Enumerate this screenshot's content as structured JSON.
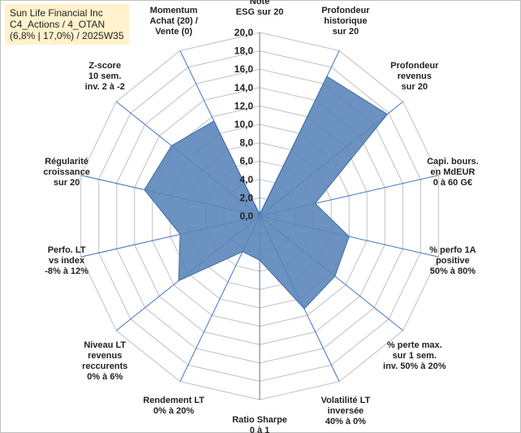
{
  "title": {
    "line1": "Sun Life Financial Inc",
    "line2": "C4_Actions / 4_OTAN",
    "line3": "(6,8% | 17,0%) / 2025W35"
  },
  "colors": {
    "fill": "#5b86b9",
    "stroke": "#3f6ea5",
    "grid": "#c0c0c0",
    "spoke": "#4472c4"
  },
  "chart_data": {
    "type": "radar",
    "range": [
      0,
      20
    ],
    "step": 2,
    "ticks": [
      "0,0",
      "2,0",
      "4,0",
      "6,0",
      "8,0",
      "10,0",
      "12,0",
      "14,0",
      "16,0",
      "18,0",
      "20,0"
    ],
    "grid": true,
    "categories": [
      [
        "Note",
        "ESG sur 20"
      ],
      [
        "Profondeur",
        "historique",
        "sur 20"
      ],
      [
        "Profondeur",
        "revenus",
        "sur 20"
      ],
      [
        "Capi. bours.",
        "en MdEUR",
        "0 à 60 G€"
      ],
      [
        "% perfo 1A",
        "positive",
        "50% à 80%"
      ],
      [
        "% perte max.",
        "sur 1 sem.",
        "inv. 50% à 20%"
      ],
      [
        "Volatilité LT",
        "inversée",
        "40% à 0%"
      ],
      [
        "Ratio Sharpe",
        "0 à 1"
      ],
      [
        "Rendement LT",
        "0% à 20%"
      ],
      [
        "Niveau LT",
        "revenus",
        "reccurents",
        "0% à 6%"
      ],
      [
        "Perfo. LT",
        "vs index",
        "-8% à 12%"
      ],
      [
        "Régularité",
        "croissance",
        "sur 20"
      ],
      [
        "Z-score",
        "10 sem.",
        "inv. 2 à -2"
      ],
      [
        "Momentum",
        "Achat (20) /",
        "Vente (0)"
      ]
    ],
    "values": [
      0.2,
      16.9,
      17.8,
      6.2,
      10.0,
      10.5,
      11.2,
      4.8,
      4.3,
      11.3,
      8.9,
      12.9,
      12.3,
      11.5
    ]
  }
}
